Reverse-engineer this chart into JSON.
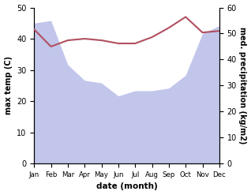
{
  "months": [
    "Jan",
    "Feb",
    "Mar",
    "Apr",
    "May",
    "Jun",
    "Jul",
    "Aug",
    "Sep",
    "Oct",
    "Nov",
    "Dec"
  ],
  "month_indices": [
    0,
    1,
    2,
    3,
    4,
    5,
    6,
    7,
    8,
    9,
    10,
    11
  ],
  "temperature": [
    43,
    37.5,
    39.5,
    40,
    39.5,
    38.5,
    38.5,
    40.5,
    43.5,
    47,
    42,
    42.5
  ],
  "precipitation": [
    54,
    55,
    38,
    32,
    31,
    26,
    28,
    28,
    29,
    34,
    50,
    53
  ],
  "temp_color": "#b05060",
  "precip_fill_color": "#b8bce8",
  "temp_ylim": [
    0,
    50
  ],
  "precip_ylim": [
    0,
    60
  ],
  "temp_yticks": [
    0,
    10,
    20,
    30,
    40,
    50
  ],
  "precip_yticks": [
    0,
    10,
    20,
    30,
    40,
    50,
    60
  ],
  "xlabel": "date (month)",
  "ylabel_left": "max temp (C)",
  "ylabel_right": "med. precipitation (kg/m2)"
}
